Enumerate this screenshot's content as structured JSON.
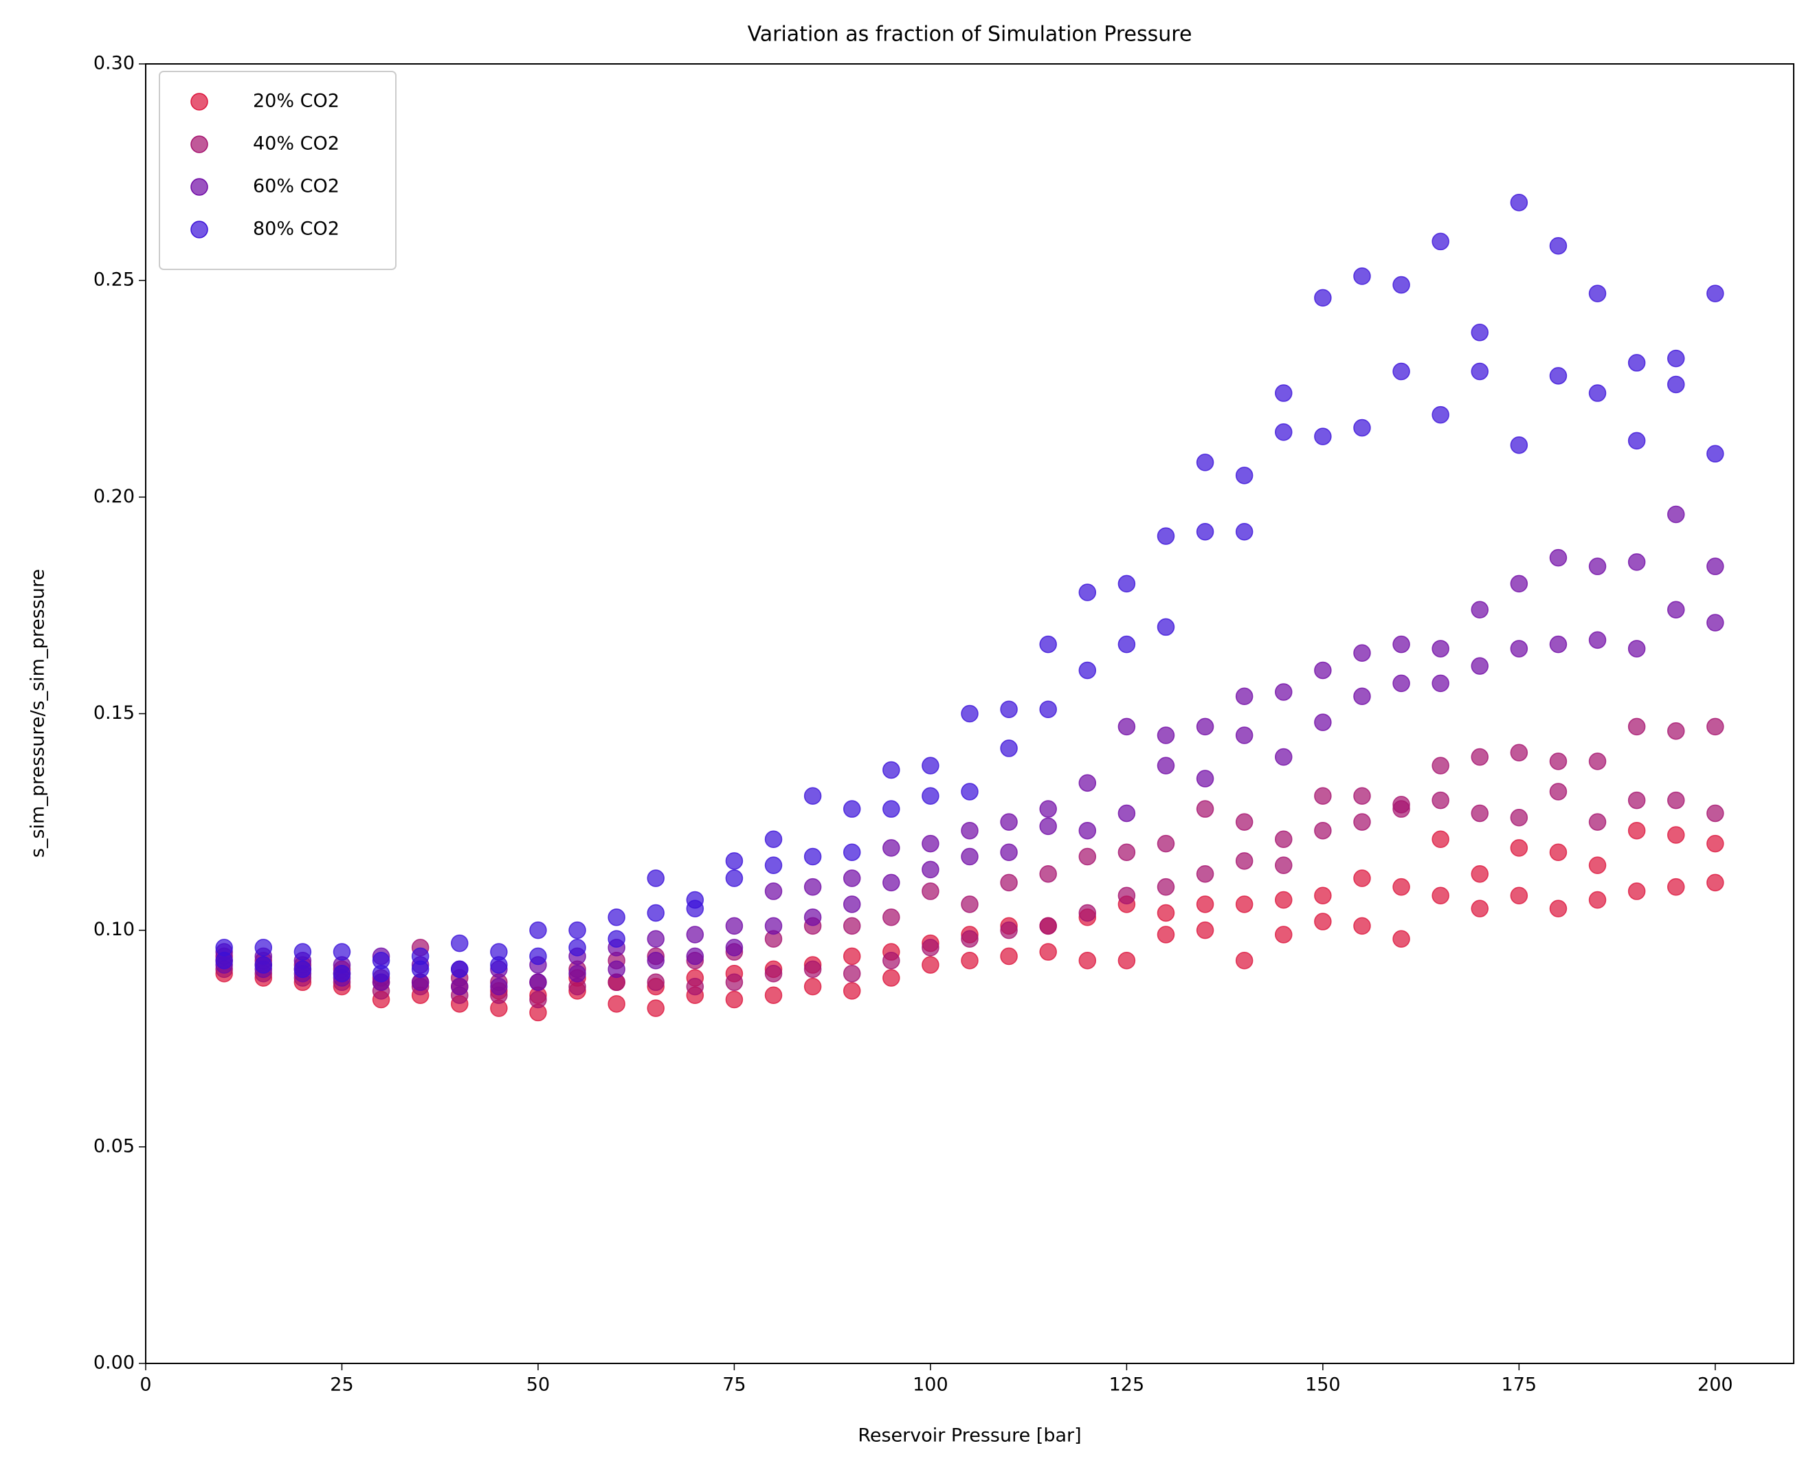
{
  "chart_data": {
    "type": "scatter",
    "title": "Variation as fraction of Simulation Pressure",
    "x_label": "Reservoir Pressure [bar]",
    "y_label": "s_sim_pressure/s_sim_pressure",
    "xlim": [
      0,
      210
    ],
    "ylim": [
      0,
      0.3
    ],
    "xticks": [
      0,
      25,
      50,
      75,
      100,
      125,
      150,
      175,
      200
    ],
    "yticks": [
      {
        "value": 0,
        "label": "0.00"
      },
      {
        "value": 0.05,
        "label": "0.05"
      },
      {
        "value": 0.1,
        "label": "0.10"
      },
      {
        "value": 0.15,
        "label": "0.15"
      },
      {
        "value": 0.2,
        "label": "0.20"
      },
      {
        "value": 0.25,
        "label": "0.25"
      },
      {
        "value": 0.3,
        "label": "0.30"
      }
    ],
    "legend": "upper left",
    "x": [
      10,
      10,
      15,
      15,
      20,
      20,
      25,
      25,
      30,
      30,
      35,
      35,
      40,
      40,
      45,
      45,
      50,
      50,
      55,
      55,
      60,
      60,
      65,
      65,
      70,
      70,
      75,
      75,
      80,
      80,
      85,
      85,
      90,
      90,
      95,
      95,
      100,
      100,
      105,
      105,
      110,
      110,
      115,
      115,
      120,
      120,
      125,
      125,
      130,
      130,
      135,
      135,
      140,
      140,
      145,
      145,
      150,
      150,
      155,
      155,
      160,
      160,
      165,
      165,
      170,
      170,
      175,
      175,
      180,
      180,
      185,
      185,
      190,
      190,
      195,
      195,
      200,
      200
    ],
    "series": [
      {
        "name": "20% CO2",
        "color": "#dc143c",
        "values": [
          0.09,
          0.093,
          0.089,
          0.092,
          0.088,
          0.091,
          0.087,
          0.09,
          0.084,
          0.088,
          0.085,
          0.088,
          0.083,
          0.087,
          0.082,
          0.086,
          0.081,
          0.085,
          0.086,
          0.089,
          0.083,
          0.088,
          0.082,
          0.087,
          0.085,
          0.089,
          0.084,
          0.09,
          0.085,
          0.091,
          0.087,
          0.092,
          0.086,
          0.094,
          0.089,
          0.095,
          0.092,
          0.097,
          0.093,
          0.099,
          0.094,
          0.101,
          0.095,
          0.101,
          0.093,
          0.103,
          0.093,
          0.106,
          0.099,
          0.104,
          0.1,
          0.106,
          0.093,
          0.106,
          0.099,
          0.107,
          0.102,
          0.108,
          0.101,
          0.112,
          0.098,
          0.11,
          0.108,
          0.121,
          0.105,
          0.113,
          0.108,
          0.119,
          0.105,
          0.118,
          0.107,
          0.115,
          0.109,
          0.123,
          0.11,
          0.122,
          0.111,
          0.12
        ]
      },
      {
        "name": "40% CO2",
        "color": "#a5126e",
        "values": [
          0.091,
          0.094,
          0.09,
          0.093,
          0.089,
          0.092,
          0.088,
          0.091,
          0.086,
          0.089,
          0.087,
          0.096,
          0.085,
          0.089,
          0.085,
          0.088,
          0.084,
          0.088,
          0.087,
          0.091,
          0.088,
          0.093,
          0.088,
          0.094,
          0.087,
          0.093,
          0.088,
          0.095,
          0.09,
          0.098,
          0.091,
          0.101,
          0.09,
          0.101,
          0.093,
          0.103,
          0.096,
          0.109,
          0.098,
          0.106,
          0.1,
          0.111,
          0.101,
          0.113,
          0.104,
          0.117,
          0.108,
          0.118,
          0.11,
          0.12,
          0.113,
          0.128,
          0.116,
          0.125,
          0.115,
          0.121,
          0.123,
          0.131,
          0.125,
          0.131,
          0.128,
          0.129,
          0.13,
          0.138,
          0.127,
          0.14,
          0.126,
          0.141,
          0.132,
          0.139,
          0.125,
          0.139,
          0.13,
          0.147,
          0.13,
          0.146,
          0.127,
          0.147
        ]
      },
      {
        "name": "60% CO2",
        "color": "#700aa5",
        "values": [
          0.092,
          0.095,
          0.091,
          0.094,
          0.09,
          0.093,
          0.089,
          0.092,
          0.088,
          0.094,
          0.088,
          0.092,
          0.087,
          0.091,
          0.087,
          0.091,
          0.088,
          0.092,
          0.09,
          0.094,
          0.091,
          0.096,
          0.093,
          0.098,
          0.094,
          0.099,
          0.096,
          0.101,
          0.101,
          0.109,
          0.103,
          0.11,
          0.106,
          0.112,
          0.111,
          0.119,
          0.114,
          0.12,
          0.117,
          0.123,
          0.118,
          0.125,
          0.124,
          0.128,
          0.123,
          0.134,
          0.127,
          0.147,
          0.138,
          0.145,
          0.135,
          0.147,
          0.145,
          0.154,
          0.14,
          0.155,
          0.148,
          0.16,
          0.154,
          0.164,
          0.157,
          0.166,
          0.157,
          0.165,
          0.161,
          0.174,
          0.165,
          0.18,
          0.166,
          0.186,
          0.167,
          0.184,
          0.165,
          0.185,
          0.174,
          0.196,
          0.171,
          0.184
        ]
      },
      {
        "name": "80% CO2",
        "color": "#3a10d8",
        "values": [
          0.093,
          0.096,
          0.092,
          0.096,
          0.091,
          0.095,
          0.09,
          0.095,
          0.09,
          0.093,
          0.091,
          0.094,
          0.091,
          0.097,
          0.092,
          0.095,
          0.094,
          0.1,
          0.096,
          0.1,
          0.098,
          0.103,
          0.104,
          0.112,
          0.105,
          0.107,
          0.112,
          0.116,
          0.115,
          0.121,
          0.117,
          0.131,
          0.118,
          0.128,
          0.128,
          0.137,
          0.131,
          0.138,
          0.132,
          0.15,
          0.142,
          0.151,
          0.151,
          0.166,
          0.16,
          0.178,
          0.166,
          0.18,
          0.17,
          0.191,
          0.192,
          0.208,
          0.192,
          0.205,
          0.215,
          0.224,
          0.214,
          0.246,
          0.216,
          0.251,
          0.229,
          0.249,
          0.219,
          0.259,
          0.229,
          0.238,
          0.212,
          0.268,
          0.228,
          0.258,
          0.224,
          0.247,
          0.213,
          0.231,
          0.226,
          0.232,
          0.21,
          0.247
        ]
      }
    ]
  }
}
